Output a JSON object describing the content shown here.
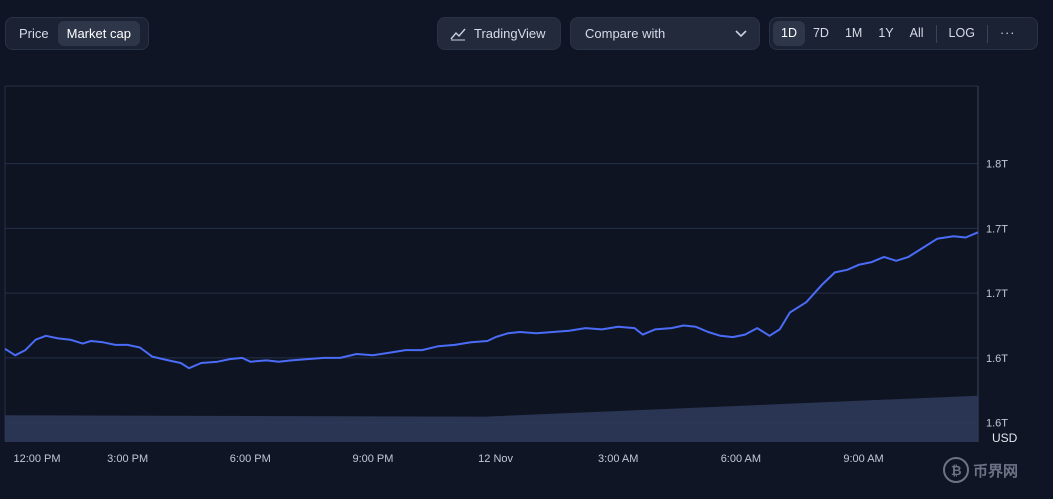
{
  "toolbar": {
    "type_options": [
      {
        "label": "Price",
        "active": false
      },
      {
        "label": "Market cap",
        "active": true
      }
    ],
    "tradingview_label": "TradingView",
    "compare_label": "Compare with",
    "ranges": [
      {
        "label": "1D",
        "active": true
      },
      {
        "label": "7D",
        "active": false
      },
      {
        "label": "1M",
        "active": false
      },
      {
        "label": "1Y",
        "active": false
      },
      {
        "label": "All",
        "active": false
      }
    ],
    "log_label": "LOG",
    "more_label": "···"
  },
  "watermark": {
    "text": "币界网"
  },
  "colors": {
    "line": "#4a6cf7",
    "volume": "#2f3b5c",
    "grid": "#263047",
    "background": "#0f1524"
  },
  "chart_data": {
    "type": "line",
    "currency_label": "USD",
    "y_axis_position": "right",
    "grid": "horizontal",
    "x_ticks": [
      "12:00 PM",
      "3:00 PM",
      "6:00 PM",
      "9:00 PM",
      "12 Nov",
      "3:00 AM",
      "6:00 AM",
      "9:00 AM"
    ],
    "y_ticks": [
      {
        "value": 1.6,
        "label": "1.6T"
      },
      {
        "value": 1.65,
        "label": "1.6T"
      },
      {
        "value": 1.7,
        "label": "1.7T"
      },
      {
        "value": 1.75,
        "label": "1.7T"
      },
      {
        "value": 1.8,
        "label": "1.8T"
      }
    ],
    "x_range_hours": [
      0,
      23.8
    ],
    "y_range": [
      1.585,
      1.86
    ],
    "series": [
      {
        "points": [
          [
            0,
            1.657
          ],
          [
            0.25,
            1.652
          ],
          [
            0.5,
            1.656
          ],
          [
            0.75,
            1.664
          ],
          [
            1.0,
            1.667
          ],
          [
            1.3,
            1.665
          ],
          [
            1.6,
            1.664
          ],
          [
            1.9,
            1.661
          ],
          [
            2.1,
            1.663
          ],
          [
            2.4,
            1.662
          ],
          [
            2.7,
            1.66
          ],
          [
            3.0,
            1.66
          ],
          [
            3.3,
            1.658
          ],
          [
            3.6,
            1.651
          ],
          [
            4.0,
            1.648
          ],
          [
            4.3,
            1.646
          ],
          [
            4.5,
            1.642
          ],
          [
            4.8,
            1.646
          ],
          [
            5.2,
            1.647
          ],
          [
            5.5,
            1.649
          ],
          [
            5.8,
            1.65
          ],
          [
            6.0,
            1.647
          ],
          [
            6.4,
            1.648
          ],
          [
            6.7,
            1.647
          ],
          [
            7.0,
            1.648
          ],
          [
            7.4,
            1.649
          ],
          [
            7.8,
            1.65
          ],
          [
            8.2,
            1.65
          ],
          [
            8.6,
            1.653
          ],
          [
            9.0,
            1.652
          ],
          [
            9.4,
            1.654
          ],
          [
            9.8,
            1.656
          ],
          [
            10.2,
            1.656
          ],
          [
            10.6,
            1.659
          ],
          [
            11.0,
            1.66
          ],
          [
            11.4,
            1.662
          ],
          [
            11.8,
            1.663
          ],
          [
            12.0,
            1.666
          ],
          [
            12.3,
            1.669
          ],
          [
            12.6,
            1.67
          ],
          [
            13.0,
            1.669
          ],
          [
            13.4,
            1.67
          ],
          [
            13.8,
            1.671
          ],
          [
            14.2,
            1.673
          ],
          [
            14.6,
            1.672
          ],
          [
            15.0,
            1.674
          ],
          [
            15.4,
            1.673
          ],
          [
            15.6,
            1.668
          ],
          [
            15.9,
            1.672
          ],
          [
            16.3,
            1.673
          ],
          [
            16.6,
            1.675
          ],
          [
            16.9,
            1.674
          ],
          [
            17.2,
            1.67
          ],
          [
            17.5,
            1.667
          ],
          [
            17.8,
            1.666
          ],
          [
            18.1,
            1.668
          ],
          [
            18.4,
            1.673
          ],
          [
            18.7,
            1.667
          ],
          [
            18.95,
            1.672
          ],
          [
            19.2,
            1.685
          ],
          [
            19.6,
            1.693
          ],
          [
            20.0,
            1.707
          ],
          [
            20.3,
            1.716
          ],
          [
            20.6,
            1.718
          ],
          [
            20.9,
            1.722
          ],
          [
            21.2,
            1.724
          ],
          [
            21.5,
            1.728
          ],
          [
            21.8,
            1.725
          ],
          [
            22.1,
            1.728
          ],
          [
            22.4,
            1.734
          ],
          [
            22.8,
            1.742
          ],
          [
            23.2,
            1.744
          ],
          [
            23.5,
            1.743
          ],
          [
            23.8,
            1.747
          ]
        ]
      }
    ],
    "volume_area": {
      "start_fraction": 0.075,
      "end_fraction": 0.13
    }
  }
}
